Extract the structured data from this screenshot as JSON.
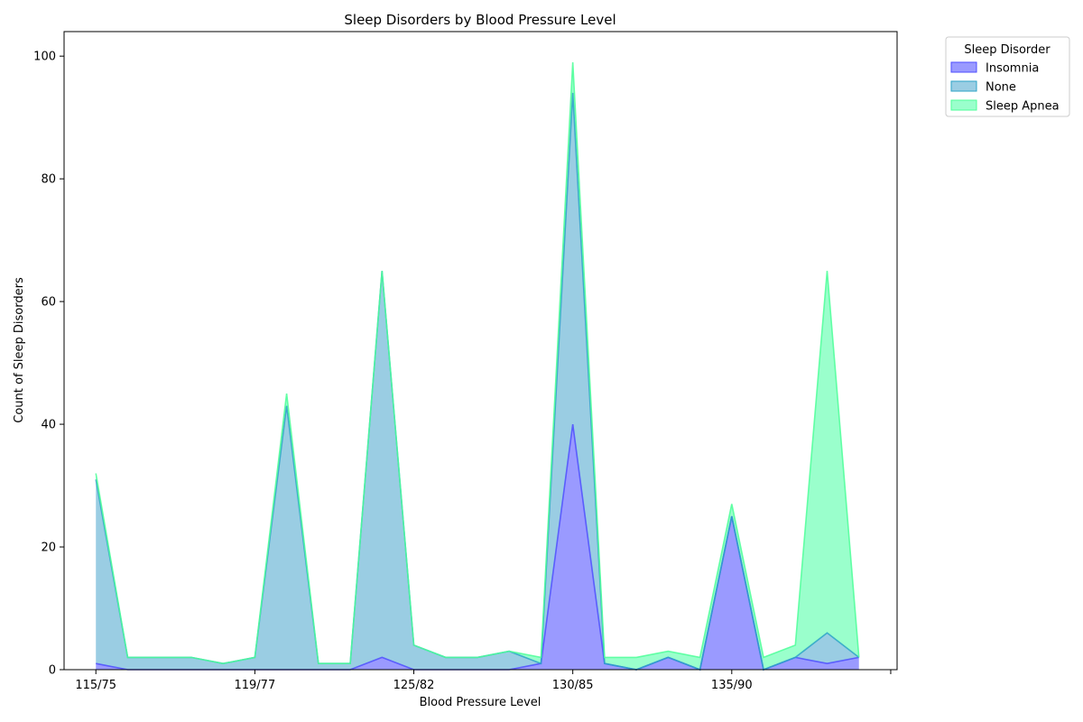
{
  "chart_data": {
    "type": "area",
    "stacked": true,
    "title": "Sleep Disorders by Blood Pressure Level",
    "xlabel": "Blood Pressure Level",
    "ylabel": "Count of Sleep Disorders",
    "ylim": [
      0,
      104
    ],
    "yticks": [
      0,
      20,
      40,
      60,
      80,
      100
    ],
    "x_index_range": [
      -1,
      25.2
    ],
    "xtick_positions": [
      0,
      5,
      10,
      15,
      20,
      25
    ],
    "xtick_labels": [
      "115/75",
      "119/77",
      "125/82",
      "130/85",
      "135/90",
      ""
    ],
    "grid": false,
    "legend": {
      "title": "Sleep Disorder",
      "placement": "outside-top-right"
    },
    "series": [
      {
        "name": "Insomnia",
        "color": "#4d4dff",
        "fill": "#9a9aff",
        "values": [
          1,
          0,
          0,
          0,
          0,
          0,
          0,
          0,
          0,
          2,
          0,
          0,
          0,
          0,
          1,
          40,
          1,
          0,
          2,
          0,
          25,
          0,
          2,
          1,
          2
        ]
      },
      {
        "name": "None",
        "color": "#2ca3c7",
        "fill": "#9acde3",
        "values": [
          30,
          2,
          2,
          2,
          1,
          2,
          43,
          1,
          1,
          63,
          4,
          2,
          2,
          3,
          0,
          54,
          0,
          0,
          0,
          0,
          0,
          0,
          0,
          5,
          0
        ]
      },
      {
        "name": "Sleep Apnea",
        "color": "#4dff99",
        "fill": "#9affcc",
        "values": [
          1,
          0,
          0,
          0,
          0,
          0,
          2,
          0,
          0,
          0,
          0,
          0,
          0,
          0,
          1,
          5,
          1,
          2,
          1,
          2,
          2,
          2,
          2,
          59,
          0
        ]
      }
    ]
  }
}
